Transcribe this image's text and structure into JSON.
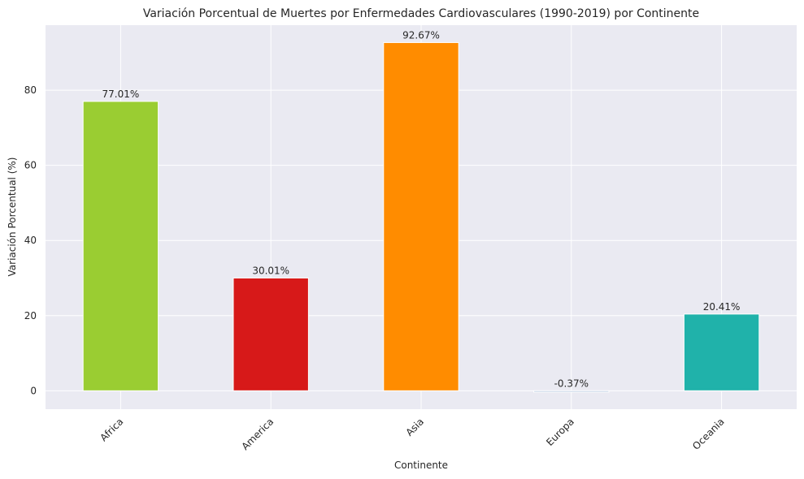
{
  "chart_data": {
    "type": "bar",
    "title": "Variación Porcentual de Muertes por Enfermedades Cardiovasculares (1990-2019) por Continente",
    "xlabel": "Continente",
    "ylabel": "Variación Porcentual (%)",
    "categories": [
      "Africa",
      "America",
      "Asia",
      "Europa",
      "Oceania"
    ],
    "values": [
      77.01,
      30.01,
      92.67,
      -0.37,
      20.41
    ],
    "value_labels": [
      "77.01%",
      "30.01%",
      "92.67%",
      "-0.37%",
      "20.41%"
    ],
    "colors": [
      "#9acd32",
      "#d71919",
      "#ff8c00",
      "#b0c4de",
      "#20b2aa"
    ],
    "ylim": [
      -4.9,
      97.3
    ],
    "yticks": [
      0,
      20,
      40,
      60,
      80
    ],
    "ytick_labels": [
      "0",
      "20",
      "40",
      "60",
      "80"
    ],
    "x_tick_rotation_deg": 45,
    "grid": true,
    "style": "seaborn-darkgrid",
    "plot_background": "#eaeaf2",
    "grid_color": "#ffffff"
  }
}
